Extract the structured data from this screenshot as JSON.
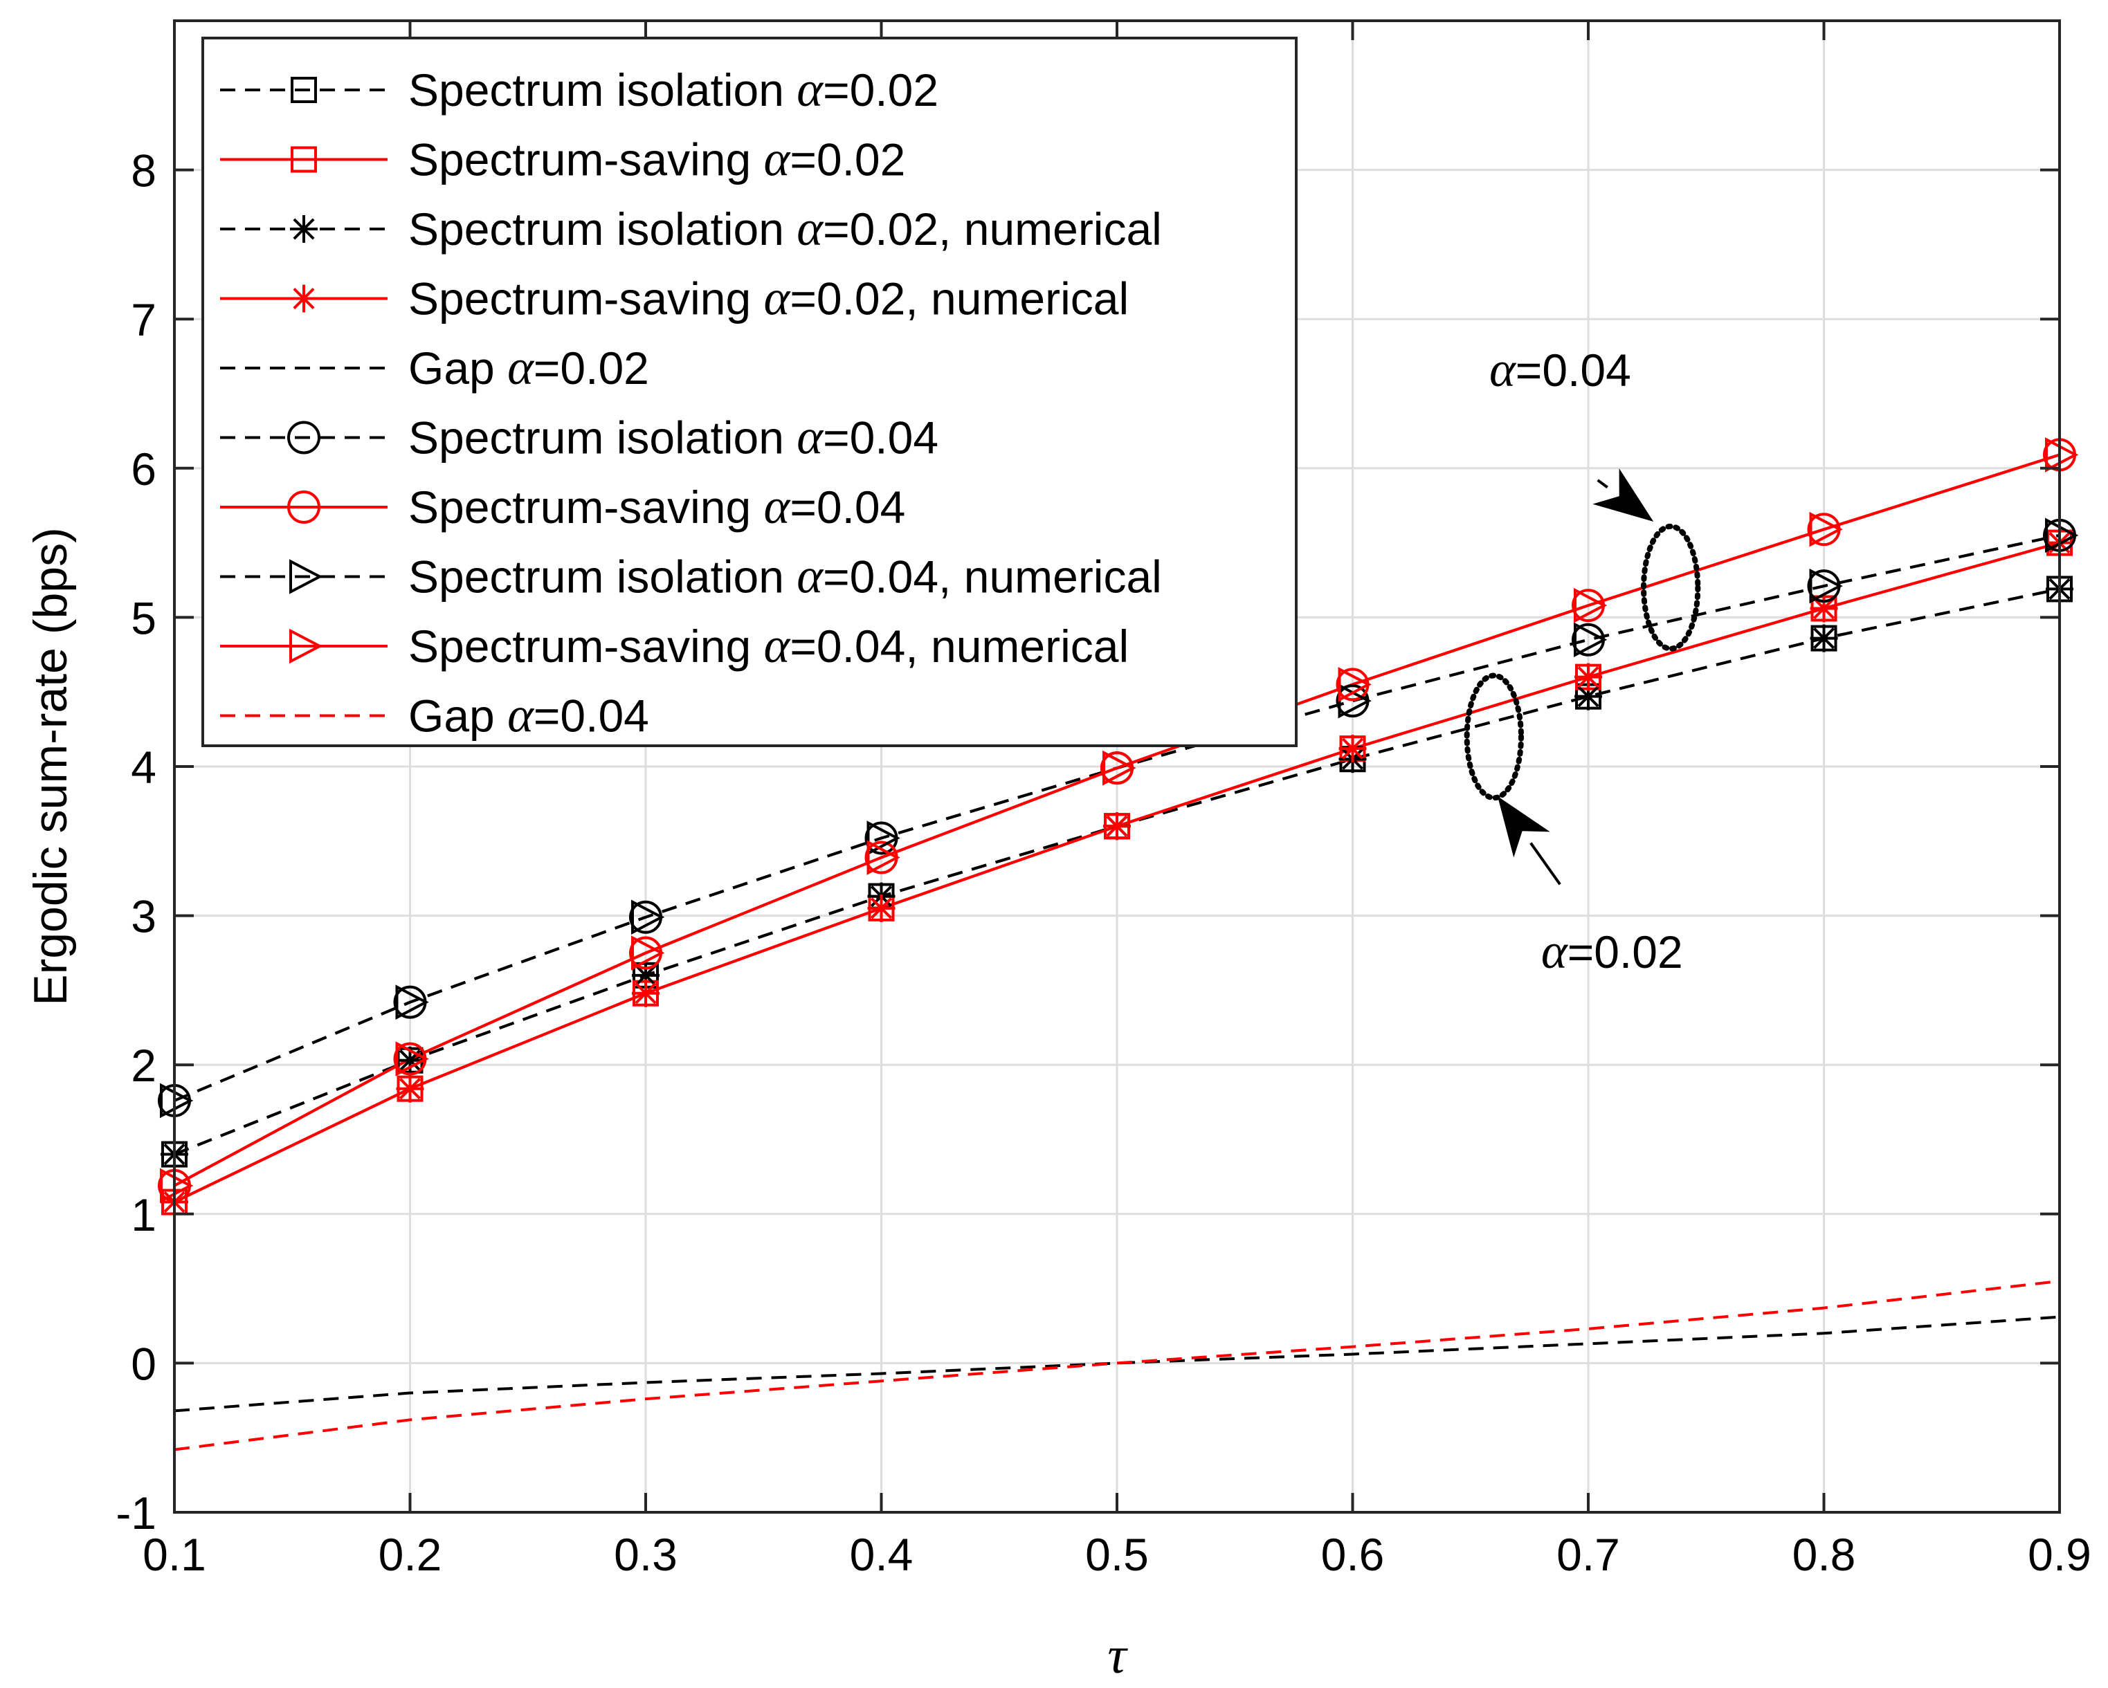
{
  "chart_data": {
    "type": "line",
    "xlabel": "τ",
    "ylabel": "Ergodic sum-rate (bps)",
    "xlim": [
      0.1,
      0.9
    ],
    "ylim": [
      -1,
      9
    ],
    "grid": true,
    "legend_position": "top-left",
    "xticks": [
      0.1,
      0.2,
      0.3,
      0.4,
      0.5,
      0.6,
      0.7,
      0.8,
      0.9
    ],
    "xtick_labels": [
      "0.1",
      "0.2",
      "0.3",
      "0.4",
      "0.5",
      "0.6",
      "0.7",
      "0.8",
      "0.9"
    ],
    "yticks": [
      -1,
      0,
      1,
      2,
      3,
      4,
      5,
      6,
      7,
      8
    ],
    "ytick_labels": [
      "-1",
      "0",
      "1",
      "2",
      "3",
      "4",
      "5",
      "6",
      "7",
      "8"
    ],
    "x": [
      0.1,
      0.2,
      0.3,
      0.4,
      0.5,
      0.6,
      0.7,
      0.8,
      0.9
    ],
    "series": [
      {
        "name": "Spectrum isolation α=0.02",
        "label_prefix": "Spectrum isolation ",
        "label_alpha": "α",
        "label_suffix": "=0.02",
        "color": "#000000",
        "dash": true,
        "marker": "square",
        "values": [
          1.4,
          2.03,
          2.6,
          3.13,
          3.6,
          4.05,
          4.47,
          4.86,
          5.19
        ]
      },
      {
        "name": "Spectrum-saving α=0.02",
        "label_prefix": "Spectrum-saving ",
        "label_alpha": "α",
        "label_suffix": "=0.02",
        "color": "#ff0000",
        "dash": false,
        "marker": "square",
        "values": [
          1.08,
          1.84,
          2.48,
          3.05,
          3.6,
          4.12,
          4.6,
          5.06,
          5.5
        ]
      },
      {
        "name": "Spectrum isolation α=0.02, numerical",
        "label_prefix": "Spectrum isolation ",
        "label_alpha": "α",
        "label_suffix": "=0.02, numerical",
        "color": "#000000",
        "dash": true,
        "marker": "star",
        "values": [
          1.4,
          2.03,
          2.6,
          3.13,
          3.6,
          4.05,
          4.47,
          4.86,
          5.19
        ]
      },
      {
        "name": "Spectrum-saving α=0.02, numerical",
        "label_prefix": "Spectrum-saving ",
        "label_alpha": "α",
        "label_suffix": "=0.02, numerical",
        "color": "#ff0000",
        "dash": false,
        "marker": "star",
        "values": [
          1.08,
          1.84,
          2.48,
          3.05,
          3.6,
          4.12,
          4.6,
          5.06,
          5.5
        ]
      },
      {
        "name": "Gap α=0.02",
        "label_prefix": "Gap ",
        "label_alpha": "α",
        "label_suffix": "=0.02",
        "color": "#000000",
        "dash": true,
        "marker": "none",
        "values": [
          -0.32,
          -0.2,
          -0.13,
          -0.07,
          0.0,
          0.06,
          0.13,
          0.2,
          0.31
        ]
      },
      {
        "name": "Spectrum isolation α=0.04",
        "label_prefix": "Spectrum isolation ",
        "label_alpha": "α",
        "label_suffix": "=0.04",
        "color": "#000000",
        "dash": true,
        "marker": "circle",
        "values": [
          1.76,
          2.42,
          2.99,
          3.52,
          3.99,
          4.44,
          4.85,
          5.21,
          5.55
        ]
      },
      {
        "name": "Spectrum-saving α=0.04",
        "label_prefix": "Spectrum-saving ",
        "label_alpha": "α",
        "label_suffix": "=0.04",
        "color": "#ff0000",
        "dash": false,
        "marker": "circle",
        "values": [
          1.19,
          2.04,
          2.75,
          3.39,
          3.99,
          4.55,
          5.08,
          5.59,
          6.09
        ]
      },
      {
        "name": "Spectrum isolation α=0.04, numerical",
        "label_prefix": "Spectrum isolation ",
        "label_alpha": "α",
        "label_suffix": "=0.04, numerical",
        "color": "#000000",
        "dash": true,
        "marker": "triangle-right",
        "values": [
          1.76,
          2.42,
          2.99,
          3.52,
          3.99,
          4.44,
          4.85,
          5.21,
          5.55
        ]
      },
      {
        "name": "Spectrum-saving α=0.04, numerical",
        "label_prefix": "Spectrum-saving ",
        "label_alpha": "α",
        "label_suffix": "=0.04, numerical",
        "color": "#ff0000",
        "dash": false,
        "marker": "triangle-right",
        "values": [
          1.19,
          2.04,
          2.75,
          3.39,
          3.99,
          4.55,
          5.08,
          5.59,
          6.09
        ]
      },
      {
        "name": "Gap α=0.04",
        "label_prefix": "Gap ",
        "label_alpha": "α",
        "label_suffix": "=0.04",
        "color": "#ff0000",
        "dash": true,
        "marker": "none",
        "values": [
          -0.58,
          -0.38,
          -0.24,
          -0.12,
          0.0,
          0.11,
          0.23,
          0.37,
          0.55
        ]
      }
    ],
    "annotations": [
      {
        "id": "alpha04",
        "alpha": "α",
        "text": "=0.04",
        "ellipse_center": [
          0.735,
          5.2
        ],
        "ellipse_radius": [
          0.0115,
          0.41
        ],
        "arrow_from": [
          0.704,
          5.92
        ],
        "arrow_to": [
          0.727,
          5.65
        ],
        "label_at": [
          0.658,
          6.55
        ]
      },
      {
        "id": "alpha02",
        "alpha": "α",
        "text": "=0.02",
        "ellipse_center": [
          0.66,
          4.2
        ],
        "ellipse_radius": [
          0.0115,
          0.41
        ],
        "arrow_from": [
          0.688,
          3.21
        ],
        "arrow_to": [
          0.662,
          3.79
        ],
        "label_at": [
          0.68,
          2.65
        ]
      }
    ]
  }
}
